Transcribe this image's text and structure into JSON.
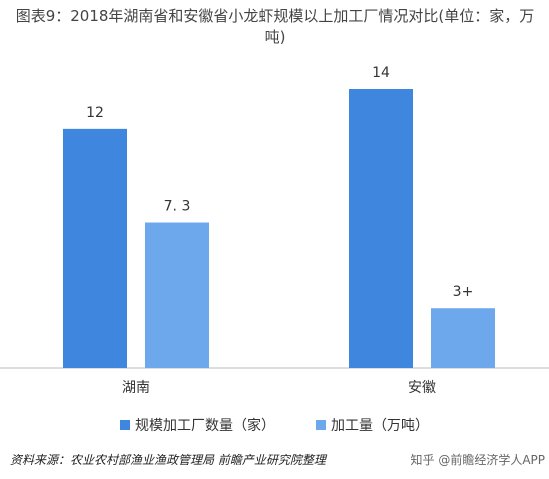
{
  "chart_data": {
    "type": "bar",
    "title": "图表9：2018年湖南省和安徽省小龙虾规模以上加工厂情况对比(单位：家，万吨)",
    "categories": [
      "湖南",
      "安徽"
    ],
    "series": [
      {
        "name": "规模加工厂数量（家）",
        "color": "#3f86de",
        "values": [
          12,
          14
        ]
      },
      {
        "name": "加工量（万吨）",
        "color": "#6ea8ec",
        "values": [
          7.3,
          3
        ],
        "value_labels": [
          "7. 3",
          "3+"
        ]
      }
    ],
    "ylim": [
      0,
      14
    ],
    "source": "资料来源：农业农村部渔业渔政管理局 前瞻产业研究院整理",
    "watermark": "知乎 @前瞻经济学人APP"
  }
}
